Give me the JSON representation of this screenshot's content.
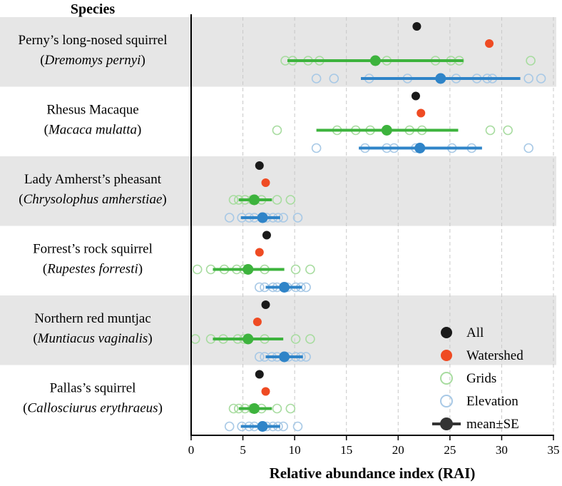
{
  "chart_data": {
    "type": "scatter",
    "title": "",
    "ylabel": "Species",
    "xlabel": "Relative abundance index (RAI)",
    "xlim": [
      0,
      35
    ],
    "x_ticks": [
      0,
      5,
      10,
      15,
      20,
      25,
      30,
      35
    ],
    "grid": "vertical dashed",
    "colors": {
      "all": "#1a1a1a",
      "watershed": "#ef4b23",
      "grids": "#3db33d",
      "elevation": "#2f84c8",
      "grids_light": "#a8dca0",
      "elevation_light": "#a8c9e6",
      "band": "#e6e6e6"
    },
    "species": [
      {
        "name": "Perny’s long-nosed squirrel",
        "sci_name": "Dremomys pernyi",
        "all": 21.8,
        "watershed": 28.8,
        "grids": {
          "mean": 17.8,
          "se_low": 9.3,
          "se_high": 26.3,
          "points": [
            9.1,
            9.8,
            11.3,
            12.4,
            18.9,
            23.6,
            25.1,
            25.9,
            32.8
          ]
        },
        "elevation": {
          "mean": 24.1,
          "se_low": 16.4,
          "se_high": 31.8,
          "points": [
            12.1,
            13.8,
            17.2,
            20.9,
            25.6,
            27.6,
            28.6,
            29.1,
            32.6,
            33.8
          ]
        }
      },
      {
        "name": "Rhesus Macaque",
        "sci_name": "Macaca mulatta",
        "all": 21.7,
        "watershed": 22.2,
        "grids": {
          "mean": 18.9,
          "se_low": 12.1,
          "se_high": 25.8,
          "points": [
            8.3,
            14.1,
            15.9,
            17.3,
            21.1,
            22.3,
            28.9,
            30.6
          ]
        },
        "elevation": {
          "mean": 22.1,
          "se_low": 16.2,
          "se_high": 28.1,
          "points": [
            12.1,
            16.8,
            18.9,
            19.6,
            21.7,
            25.2,
            27.1,
            32.6
          ]
        }
      },
      {
        "name": "Lady Amherst’s pheasant",
        "sci_name": "Chrysolophus amherstiae",
        "all": 6.6,
        "watershed": 7.2,
        "grids": {
          "mean": 6.1,
          "se_low": 4.6,
          "se_high": 7.8,
          "points": [
            4.1,
            4.6,
            5.2,
            5.9,
            6.8,
            8.3,
            9.6
          ]
        },
        "elevation": {
          "mean": 6.9,
          "se_low": 4.8,
          "se_high": 8.6,
          "points": [
            3.7,
            4.9,
            5.6,
            6.1,
            7.3,
            7.9,
            8.4,
            8.9,
            10.3
          ]
        }
      },
      {
        "name": "Forrest’s rock squirrel",
        "sci_name": "Rupestes forresti",
        "all": 7.3,
        "watershed": 6.6,
        "grids": {
          "mean": 5.5,
          "se_low": 2.1,
          "se_high": 9.0,
          "points": [
            0.6,
            1.9,
            3.2,
            4.4,
            5.1,
            7.1,
            10.1,
            11.5
          ]
        },
        "elevation": {
          "mean": 9.0,
          "se_low": 7.2,
          "se_high": 10.7,
          "points": [
            6.6,
            7.1,
            7.9,
            8.3,
            9.3,
            10.1,
            10.6,
            11.1
          ]
        }
      },
      {
        "name": "Northern red muntjac",
        "sci_name": "Muntiacus vaginalis",
        "all": 7.2,
        "watershed": 6.4,
        "grids": {
          "mean": 5.5,
          "se_low": 2.1,
          "se_high": 8.9,
          "points": [
            0.4,
            1.9,
            3.1,
            4.5,
            5.1,
            7.1,
            10.1,
            11.5
          ]
        },
        "elevation": {
          "mean": 9.0,
          "se_low": 7.2,
          "se_high": 10.8,
          "points": [
            6.6,
            7.1,
            7.8,
            8.3,
            9.4,
            10.1,
            10.6,
            11.1
          ]
        }
      },
      {
        "name": "Pallas’s squirrel",
        "sci_name": "Callosciurus erythraeus",
        "all": 6.6,
        "watershed": 7.2,
        "grids": {
          "mean": 6.1,
          "se_low": 4.6,
          "se_high": 7.8,
          "points": [
            4.1,
            4.6,
            5.2,
            5.9,
            6.8,
            8.3,
            9.6
          ]
        },
        "elevation": {
          "mean": 6.9,
          "se_low": 4.8,
          "se_high": 8.6,
          "points": [
            3.7,
            4.9,
            5.6,
            6.1,
            7.3,
            7.9,
            8.4,
            8.9,
            10.3
          ]
        }
      }
    ],
    "legend": {
      "position": "bottom-right",
      "items": [
        {
          "key": "all",
          "label": "All"
        },
        {
          "key": "watershed",
          "label": "Watershed"
        },
        {
          "key": "grids",
          "label": "Grids"
        },
        {
          "key": "elevation",
          "label": "Elevation"
        },
        {
          "key": "mean_se",
          "label": "mean±SE"
        }
      ]
    }
  }
}
